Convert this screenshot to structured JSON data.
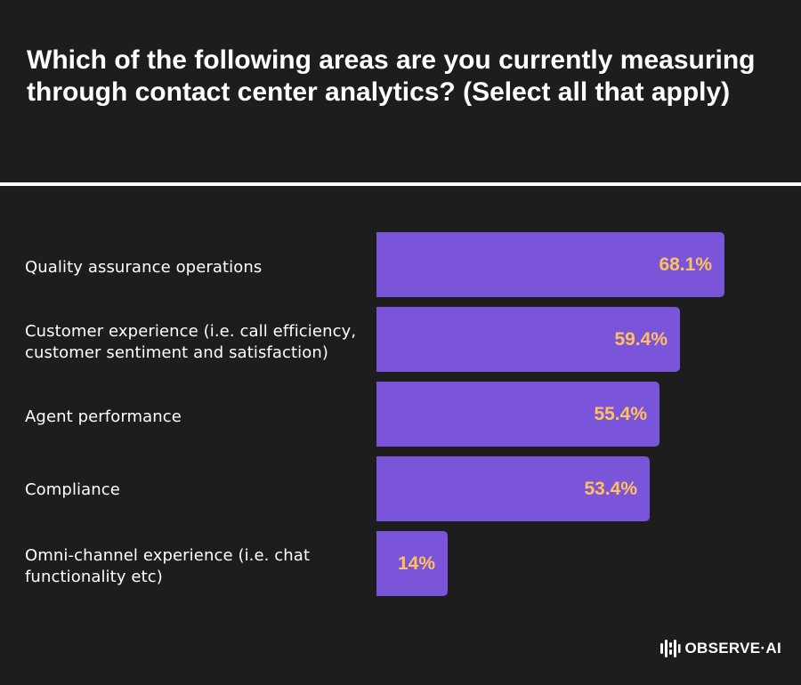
{
  "chart_data": {
    "type": "bar",
    "orientation": "horizontal",
    "title": "Which of the following areas are you currently measuring through contact center analytics? (Select all that apply)",
    "categories": [
      "Quality assurance operations",
      "Customer experience (i.e. call efficiency, customer sentiment and satisfaction)",
      "Agent performance",
      "Compliance",
      "Omni-channel experience (i.e. chat functionality etc)"
    ],
    "values": [
      68.1,
      59.4,
      55.4,
      53.4,
      14
    ],
    "value_labels": [
      "68.1%",
      "59.4%",
      "55.4%",
      "53.4%",
      "14%"
    ],
    "xlim": [
      0,
      100
    ],
    "grid": false,
    "legend": "none"
  },
  "colors": {
    "background": "#1d1d1d",
    "bar": "#7b55d9",
    "value_label": "#ffc15e",
    "text": "#ffffff"
  },
  "brand": {
    "logo_text": "OBSERVE·AI",
    "logo_icon": "observe-ai-logo-icon"
  }
}
